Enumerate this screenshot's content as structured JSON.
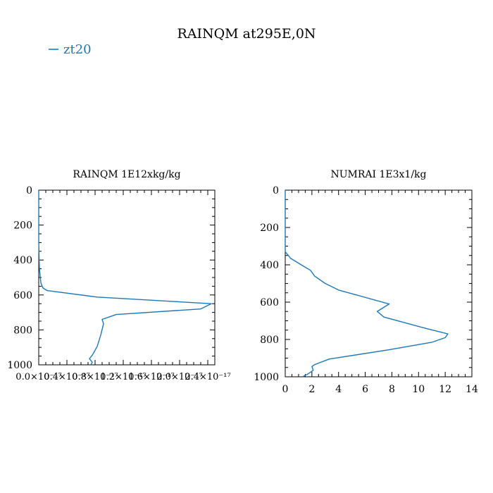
{
  "figure_title": "RAINQM at295E,0N",
  "legend": {
    "label": "zt20",
    "color": "#1f77b4"
  },
  "chart_data": [
    {
      "type": "line",
      "title": "RAINQM  1E12xkg/kg",
      "xlabel": "",
      "ylabel": "",
      "xlim": [
        0,
        2.5e-17
      ],
      "ylim": [
        1000,
        0
      ],
      "x_tick_values": [
        0,
        4e-18,
        8e-18,
        1.2e-17,
        1.6e-17,
        2e-17,
        2.4e-17
      ],
      "x_tick_labels": [
        "0.0×10⁻¹⁷",
        "0.4×10⁻¹⁷",
        "0.8×10⁻¹⁷",
        "1.2×10⁻¹⁷",
        "1.6×10⁻¹⁷",
        "2.0×10⁻¹⁷",
        "2.4×10⁻¹⁷"
      ],
      "y_tick_values": [
        0,
        200,
        400,
        600,
        800,
        1000
      ],
      "y_tick_labels": [
        "0",
        "200",
        "400",
        "600",
        "800",
        "1000"
      ],
      "series": [
        {
          "color": "#1f77b4",
          "points": [
            [
              0,
              0
            ],
            [
              0,
              300
            ],
            [
              1e-19,
              450
            ],
            [
              3e-19,
              530
            ],
            [
              6e-19,
              560
            ],
            [
              1.2e-18,
              575
            ],
            [
              8.3e-18,
              612
            ],
            [
              2.45e-17,
              650
            ],
            [
              2.3e-17,
              680
            ],
            [
              1.1e-17,
              712
            ],
            [
              9e-18,
              740
            ],
            [
              9.2e-18,
              765
            ],
            [
              8.8e-18,
              830
            ],
            [
              8.3e-18,
              895
            ],
            [
              7.6e-18,
              945
            ],
            [
              7.2e-18,
              965
            ],
            [
              7.6e-18,
              985
            ],
            [
              7.4e-18,
              1000
            ]
          ]
        }
      ]
    },
    {
      "type": "line",
      "title": "NUMRAI  1E3x1/kg",
      "xlabel": "",
      "ylabel": "",
      "xlim": [
        0,
        14
      ],
      "ylim": [
        1000,
        0
      ],
      "x_tick_values": [
        0,
        2,
        4,
        6,
        8,
        10,
        12,
        14
      ],
      "x_tick_labels": [
        "0",
        "2",
        "4",
        "6",
        "8",
        "10",
        "12",
        "14"
      ],
      "y_tick_values": [
        0,
        200,
        400,
        600,
        800,
        1000
      ],
      "y_tick_labels": [
        "0",
        "200",
        "400",
        "600",
        "800",
        "1000"
      ],
      "series": [
        {
          "color": "#1f77b4",
          "points": [
            [
              0,
              0
            ],
            [
              0,
              330
            ],
            [
              0.4,
              365
            ],
            [
              1.2,
              400
            ],
            [
              1.9,
              430
            ],
            [
              2.2,
              460
            ],
            [
              3.0,
              500
            ],
            [
              4.0,
              535
            ],
            [
              7.8,
              610
            ],
            [
              6.9,
              650
            ],
            [
              7.4,
              680
            ],
            [
              10.5,
              740
            ],
            [
              12.2,
              770
            ],
            [
              12.0,
              790
            ],
            [
              11.0,
              815
            ],
            [
              7.8,
              855
            ],
            [
              3.3,
              905
            ],
            [
              2.2,
              935
            ],
            [
              2.0,
              945
            ],
            [
              2.1,
              965
            ],
            [
              1.7,
              985
            ],
            [
              1.3,
              1000
            ]
          ]
        }
      ]
    }
  ]
}
